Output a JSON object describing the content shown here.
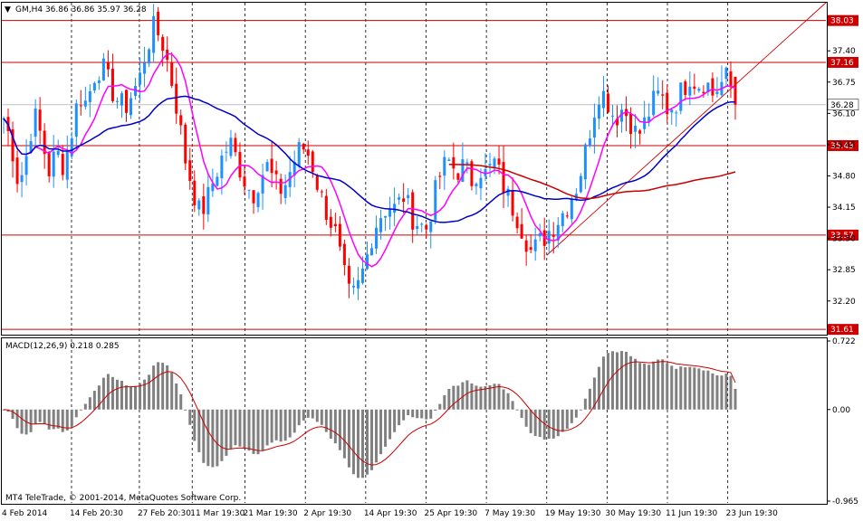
{
  "header": {
    "symbol_line": "GM,H4  36.86 36.86 35.97 36.28"
  },
  "macd_panel": {
    "title": "MACD(12,26,9) 0.218 0.285",
    "copyright": "MT4 TeleTrade, © 2001-2014, MetaQuotes Software Corp."
  },
  "price_axis": {
    "ticks": [
      "37.40",
      "36.75",
      "36.10",
      "35.45",
      "34.80",
      "34.15",
      "33.50",
      "32.85",
      "32.20"
    ]
  },
  "macd_axis": {
    "ticks": [
      "0.722",
      "0.00",
      "-0.965"
    ]
  },
  "level_labels": [
    {
      "value": 38.03,
      "label": "38.03"
    },
    {
      "value": 37.16,
      "label": "37.16"
    },
    {
      "value": 36.28,
      "label": "36.28",
      "current": true
    },
    {
      "value": 35.43,
      "label": "35.43"
    },
    {
      "value": 33.57,
      "label": "33.57"
    },
    {
      "value": 31.61,
      "label": "31.61"
    }
  ],
  "time_axis": {
    "labels": [
      "4 Feb 2014",
      "14 Feb 20:30",
      "27 Feb 20:30",
      "11 Mar 19:30",
      "21 Mar 19:30",
      "2 Apr 19:30",
      "14 Apr 19:30",
      "25 Apr 19:30",
      "7 May 19:30",
      "19 May 19:30",
      "30 May 19:30",
      "11 Jun 19:30",
      "23 Jun 19:30"
    ]
  },
  "colors": {
    "bull": "#1e90ff",
    "bear": "#ff0000",
    "ma_fast": "#ff00ff",
    "ma_mid": "#0000c8",
    "ma_slow": "#c80000",
    "level": "#cc0000",
    "macd_hist": "#808080",
    "macd_signal": "#cc0000",
    "grid": "#000000"
  },
  "chart_data": {
    "type": "candlestick",
    "symbol": "GM",
    "timeframe": "H4",
    "last": {
      "open": 36.86,
      "high": 36.86,
      "low": 35.97,
      "close": 36.28
    },
    "price_range": [
      31.5,
      38.4
    ],
    "price_path": [
      [
        36.0,
        "4 Feb 2014"
      ],
      [
        35.5,
        null
      ],
      [
        34.6,
        null
      ],
      [
        35.2,
        null
      ],
      [
        36.1,
        null
      ],
      [
        35.6,
        null
      ],
      [
        34.9,
        null
      ],
      [
        35.3,
        null
      ],
      [
        35.0,
        null
      ],
      [
        35.7,
        "14 Feb 20:30"
      ],
      [
        36.5,
        null
      ],
      [
        36.3,
        null
      ],
      [
        36.9,
        null
      ],
      [
        37.1,
        null
      ],
      [
        36.7,
        null
      ],
      [
        36.4,
        null
      ],
      [
        36.2,
        null
      ],
      [
        36.5,
        null
      ],
      [
        36.8,
        "27 Feb 20:30"
      ],
      [
        37.5,
        null
      ],
      [
        37.9,
        null
      ],
      [
        37.6,
        null
      ],
      [
        37.0,
        null
      ],
      [
        36.2,
        null
      ],
      [
        35.2,
        null
      ],
      [
        34.6,
        "11 Mar 19:30"
      ],
      [
        34.0,
        null
      ],
      [
        34.3,
        null
      ],
      [
        34.8,
        null
      ],
      [
        35.2,
        null
      ],
      [
        35.5,
        null
      ],
      [
        35.1,
        null
      ],
      [
        34.7,
        "21 Mar 19:30"
      ],
      [
        34.4,
        null
      ],
      [
        34.8,
        null
      ],
      [
        35.0,
        null
      ],
      [
        34.6,
        null
      ],
      [
        34.5,
        null
      ],
      [
        34.9,
        null
      ],
      [
        35.3,
        null
      ],
      [
        35.4,
        "2 Apr 19:30"
      ],
      [
        35.0,
        null
      ],
      [
        34.4,
        null
      ],
      [
        34.0,
        null
      ],
      [
        33.6,
        null
      ],
      [
        32.8,
        null
      ],
      [
        32.2,
        null
      ],
      [
        32.5,
        null
      ],
      [
        33.0,
        "14 Apr 19:30"
      ],
      [
        33.7,
        null
      ],
      [
        34.0,
        null
      ],
      [
        34.2,
        null
      ],
      [
        34.1,
        null
      ],
      [
        34.4,
        null
      ],
      [
        34.0,
        null
      ],
      [
        33.8,
        null
      ],
      [
        33.7,
        "25 Apr 19:30"
      ],
      [
        34.3,
        null
      ],
      [
        34.9,
        null
      ],
      [
        35.1,
        null
      ],
      [
        34.9,
        null
      ],
      [
        35.0,
        null
      ],
      [
        34.7,
        null
      ],
      [
        35.0,
        null
      ],
      [
        34.8,
        "7 May 19:30"
      ],
      [
        35.1,
        null
      ],
      [
        34.7,
        null
      ],
      [
        34.3,
        null
      ],
      [
        34.0,
        null
      ],
      [
        33.6,
        null
      ],
      [
        33.2,
        null
      ],
      [
        33.4,
        null
      ],
      [
        33.6,
        "19 May 19:30"
      ],
      [
        33.8,
        null
      ],
      [
        34.0,
        null
      ],
      [
        34.3,
        null
      ],
      [
        34.6,
        null
      ],
      [
        35.2,
        null
      ],
      [
        36.0,
        null
      ],
      [
        36.6,
        null
      ],
      [
        36.4,
        "30 May 19:30"
      ],
      [
        36.0,
        null
      ],
      [
        36.2,
        null
      ],
      [
        36.0,
        null
      ],
      [
        35.6,
        null
      ],
      [
        35.9,
        null
      ],
      [
        36.3,
        null
      ],
      [
        36.5,
        null
      ],
      [
        36.2,
        "11 Jun 19:30"
      ],
      [
        36.3,
        null
      ],
      [
        36.6,
        null
      ],
      [
        36.9,
        null
      ],
      [
        36.7,
        null
      ],
      [
        36.8,
        null
      ],
      [
        36.5,
        null
      ],
      [
        36.7,
        null
      ],
      [
        36.86,
        "23 Jun 19:30"
      ],
      [
        36.28,
        null
      ]
    ],
    "horizontal_levels": [
      38.03,
      37.16,
      35.43,
      33.57,
      31.61
    ],
    "trendline": {
      "from": [
        33.15,
        "19 May 19:30"
      ],
      "to": [
        38.4,
        "end"
      ]
    },
    "macd": {
      "params": "12,26,9",
      "main": 0.218,
      "signal": 0.285,
      "range": [
        -0.965,
        0.722
      ]
    }
  }
}
